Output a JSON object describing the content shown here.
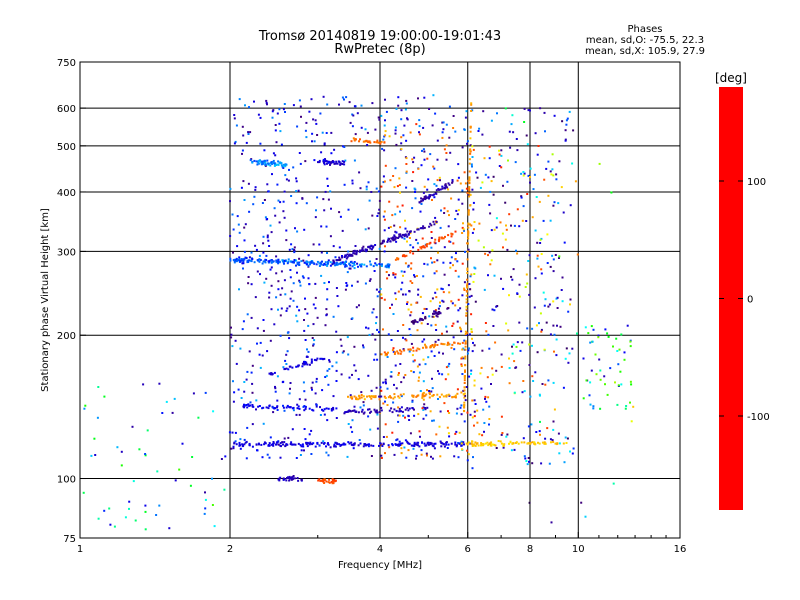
{
  "chart_data": {
    "type": "scatter",
    "title": "Tromsø 20140819 19:00:00-19:01:43",
    "subtitle": "RwPretec (8p)",
    "xlabel": "Frequency [MHz]",
    "ylabel": "Stationary phase Virtual Height [km]",
    "x_scale": "log",
    "y_scale": "log",
    "xlim": [
      1,
      16
    ],
    "ylim": [
      75,
      750
    ],
    "x_ticks": [
      1,
      2,
      4,
      6,
      8,
      10,
      16
    ],
    "x_tick_labels": [
      "1",
      "2",
      "4",
      "6",
      "8",
      "10",
      "16"
    ],
    "x_grid": [
      2,
      4,
      6,
      8,
      10
    ],
    "y_ticks": [
      75,
      100,
      200,
      300,
      400,
      500,
      600,
      750
    ],
    "y_tick_labels": [
      "75",
      "100",
      "200",
      "300",
      "400",
      "500",
      "600",
      "750"
    ],
    "y_grid": [
      100,
      200,
      300,
      400,
      500,
      600
    ],
    "grid": true,
    "stats": {
      "heading": "Phases",
      "o_line": "mean, sd,O: -75.5, 22.3",
      "x_line": "mean, sd,X: 105.9, 27.9"
    },
    "colorbar": {
      "label": "[deg]",
      "range": [
        -180,
        180
      ],
      "ticks": [
        100,
        0,
        -100
      ],
      "tick_labels": [
        "100",
        "0",
        "-100"
      ],
      "colors": [
        "#ff0000",
        "#ff8000",
        "#ffff00",
        "#00ff00",
        "#00ffff",
        "#0000ff",
        "#400080",
        "#000000"
      ]
    },
    "traces": [
      {
        "f": [
          2.0,
          5.9
        ],
        "h": [
          118,
          118
        ],
        "phase": -90,
        "n": 190
      },
      {
        "f": [
          5.8,
          9.5
        ],
        "h": [
          118,
          119
        ],
        "phase": 100,
        "n": 80
      },
      {
        "f": [
          2.1,
          3.3
        ],
        "h": [
          142,
          140
        ],
        "phase": -85,
        "n": 60
      },
      {
        "f": [
          3.4,
          6.0
        ],
        "h": [
          148,
          150
        ],
        "phase": 120,
        "n": 80
      },
      {
        "f": [
          3.4,
          5.0
        ],
        "h": [
          138,
          140
        ],
        "phase": -105,
        "n": 50
      },
      {
        "f": [
          4.0,
          6.0
        ],
        "h": [
          182,
          195
        ],
        "phase": 130,
        "n": 50
      },
      {
        "f": [
          2.0,
          4.2
        ],
        "h": [
          288,
          280
        ],
        "phase": -60,
        "n": 200
      },
      {
        "f": [
          3.2,
          5.2
        ],
        "h": [
          285,
          345
        ],
        "phase": -110,
        "n": 110
      },
      {
        "f": [
          4.2,
          5.7
        ],
        "h": [
          285,
          330
        ],
        "phase": 150,
        "n": 40
      },
      {
        "f": [
          4.6,
          5.5
        ],
        "h": [
          212,
          228
        ],
        "phase": -125,
        "n": 40
      },
      {
        "f": [
          2.2,
          2.6
        ],
        "h": [
          465,
          455
        ],
        "phase": -50,
        "n": 60
      },
      {
        "f": [
          3.0,
          3.4
        ],
        "h": [
          465,
          460
        ],
        "phase": -95,
        "n": 40
      },
      {
        "f": [
          3.5,
          4.1
        ],
        "h": [
          515,
          505
        ],
        "phase": 140,
        "n": 30
      },
      {
        "f": [
          2.5,
          2.8
        ],
        "h": [
          100,
          100
        ],
        "phase": -105,
        "n": 30
      },
      {
        "f": [
          3.0,
          3.3
        ],
        "h": [
          99,
          99
        ],
        "phase": 150,
        "n": 30
      },
      {
        "f": [
          4.8,
          5.6
        ],
        "h": [
          380,
          420
        ],
        "phase": -110,
        "n": 45
      },
      {
        "f": [
          2.4,
          3.1
        ],
        "h": [
          165,
          180
        ],
        "phase": -90,
        "n": 40
      },
      {
        "f": [
          5.9,
          6.1
        ],
        "h": [
          140,
          620
        ],
        "phase": 120,
        "n": 90
      }
    ],
    "scatter_regions": [
      {
        "f": [
          2.0,
          6.2
        ],
        "h": [
          110,
          640
        ],
        "phase": [
          -130,
          -40
        ],
        "n": 900
      },
      {
        "f": [
          4.0,
          6.2
        ],
        "h": [
          110,
          560
        ],
        "phase": [
          90,
          170
        ],
        "n": 220
      },
      {
        "f": [
          6.0,
          9.8
        ],
        "h": [
          105,
          600
        ],
        "phase": [
          -140,
          -20
        ],
        "n": 230
      },
      {
        "f": [
          6.0,
          9.0
        ],
        "h": [
          120,
          500
        ],
        "phase": [
          60,
          170
        ],
        "n": 90
      },
      {
        "f": [
          10.2,
          12.8
        ],
        "h": [
          140,
          210
        ],
        "phase": [
          -110,
          60
        ],
        "n": 55
      },
      {
        "f": [
          1.0,
          2.0
        ],
        "h": [
          78,
          160
        ],
        "phase": [
          -120,
          40
        ],
        "n": 60
      },
      {
        "f": [
          7.0,
          13.0
        ],
        "h": [
          80,
          620
        ],
        "phase": [
          -160,
          160
        ],
        "n": 40
      }
    ]
  }
}
